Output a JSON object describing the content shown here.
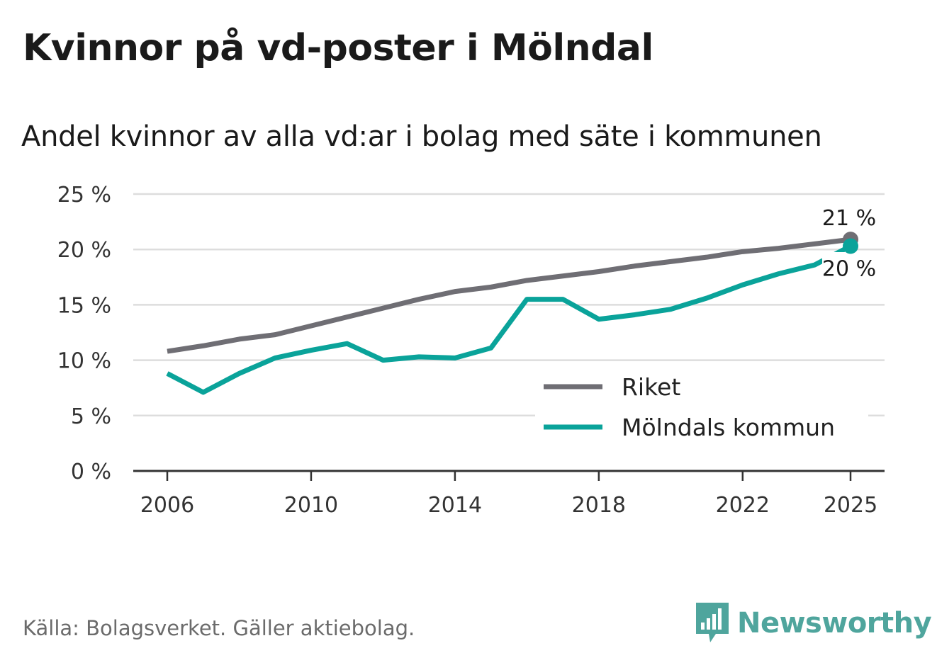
{
  "header": {
    "title": "Kvinnor på vd-poster i Mölndal",
    "subtitle": "Andel kvinnor av alla vd:ar i bolag med säte i kommunen"
  },
  "footer": {
    "source": "Källa: Bolagsverket. Gäller aktiebolag.",
    "brand": "Newsworthy"
  },
  "colors": {
    "riket": "#6f6e74",
    "molndal": "#0aa39a",
    "grid": "#dddddd",
    "axis": "#333333",
    "brand": "#4fa59d"
  },
  "chart_data": {
    "type": "line",
    "title": "Kvinnor på vd-poster i Mölndal",
    "subtitle": "Andel kvinnor av alla vd:ar i bolag med säte i kommunen",
    "xlabel": "",
    "ylabel": "",
    "ylim": [
      0,
      25
    ],
    "xlim": [
      2006,
      2025
    ],
    "grid": true,
    "legend_position": "bottom-right",
    "x_ticks": [
      "2006",
      "2010",
      "2014",
      "2018",
      "2022",
      "2025"
    ],
    "y_ticks": [
      "0 %",
      "5 %",
      "10 %",
      "15 %",
      "20 %",
      "25 %"
    ],
    "x": [
      2006,
      2007,
      2008,
      2009,
      2010,
      2011,
      2012,
      2013,
      2014,
      2015,
      2016,
      2017,
      2018,
      2019,
      2020,
      2021,
      2022,
      2023,
      2024,
      2025
    ],
    "series": [
      {
        "name": "Riket",
        "color": "#6f6e74",
        "values": [
          10.8,
          11.3,
          11.9,
          12.3,
          13.1,
          13.9,
          14.7,
          15.5,
          16.2,
          16.6,
          17.2,
          17.6,
          18.0,
          18.5,
          18.9,
          19.3,
          19.8,
          20.1,
          20.5,
          20.9
        ],
        "end_label": "21 %"
      },
      {
        "name": "Mölndals kommun",
        "color": "#0aa39a",
        "values": [
          8.8,
          7.1,
          8.8,
          10.2,
          10.9,
          11.5,
          10.0,
          10.3,
          10.2,
          11.1,
          15.5,
          15.5,
          13.7,
          14.1,
          14.6,
          15.6,
          16.8,
          17.8,
          18.6,
          20.3
        ],
        "end_label": "20 %"
      }
    ]
  }
}
